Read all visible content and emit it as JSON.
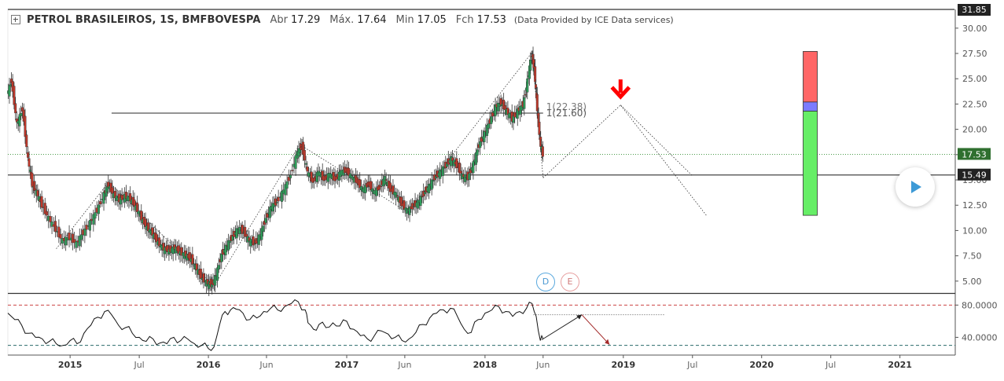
{
  "header": {
    "symbol": "PETROL BRASILEIROS, 1S, BMFBOVESPA",
    "open_label": "Abr",
    "open_value": "17.29",
    "high_label": "Máx.",
    "high_value": "17.64",
    "low_label": "Min",
    "low_value": "17.05",
    "close_label": "Fch",
    "close_value": "17.53",
    "source": "(Data Provided by ICE Data services)"
  },
  "events": {
    "dividends": "D",
    "earnings": "E"
  },
  "colors": {
    "up": "#2e9e5a",
    "down": "#c0392b",
    "target_red": "#ff6666",
    "target_blue": "#7b7bff",
    "target_green": "#66ee66",
    "arrow": "#ff0000",
    "play": "#3d9ad6"
  },
  "chart_data": {
    "type": "candlestick",
    "price_axis": {
      "ticks": [
        "30.00",
        "27.50",
        "25.00",
        "22.50",
        "20.00",
        "17.50",
        "15.00",
        "12.50",
        "10.00",
        "7.50",
        "5.00"
      ],
      "tick_values": [
        30,
        27.5,
        25,
        22.5,
        20,
        17.5,
        15,
        12.5,
        10,
        7.5,
        5
      ],
      "ylim": [
        3.9,
        31.85
      ],
      "top_label": "31.85",
      "last_price": "17.53",
      "support_label": "15.49"
    },
    "oscillator_axis": {
      "ticks": [
        "80.0000",
        "40.0000"
      ],
      "tick_values": [
        80,
        40
      ],
      "ylim": [
        18,
        93
      ],
      "overbought": 80,
      "oversold": 30
    },
    "time_axis": {
      "labels": [
        "2015",
        "Jul",
        "2016",
        "Jun",
        "2017",
        "Jun",
        "2018",
        "Jun",
        "2019",
        "Jul",
        "2020",
        "Jul",
        "2021"
      ],
      "bold": [
        true,
        false,
        true,
        false,
        true,
        false,
        true,
        false,
        true,
        false,
        true,
        false,
        true
      ],
      "xlim": [
        2014.55,
        2021.4
      ],
      "label_positions": [
        2015.0,
        2015.5,
        2016.0,
        2016.42,
        2017.0,
        2017.42,
        2018.0,
        2018.42,
        2019.0,
        2019.5,
        2020.0,
        2020.5,
        2021.0
      ]
    },
    "price_series": [
      [
        2014.55,
        23.5
      ],
      [
        2014.58,
        24.8
      ],
      [
        2014.62,
        20.5
      ],
      [
        2014.66,
        22.0
      ],
      [
        2014.7,
        17.0
      ],
      [
        2014.73,
        14.5
      ],
      [
        2014.76,
        13.8
      ],
      [
        2014.8,
        12.5
      ],
      [
        2014.85,
        11.2
      ],
      [
        2014.9,
        10.1
      ],
      [
        2014.95,
        9.0
      ],
      [
        2015.0,
        9.3
      ],
      [
        2015.05,
        8.7
      ],
      [
        2015.1,
        9.8
      ],
      [
        2015.15,
        10.8
      ],
      [
        2015.2,
        12.0
      ],
      [
        2015.25,
        13.6
      ],
      [
        2015.28,
        14.5
      ],
      [
        2015.32,
        13.5
      ],
      [
        2015.36,
        13.0
      ],
      [
        2015.4,
        13.4
      ],
      [
        2015.44,
        13.1
      ],
      [
        2015.48,
        12.3
      ],
      [
        2015.52,
        11.2
      ],
      [
        2015.56,
        10.3
      ],
      [
        2015.6,
        9.7
      ],
      [
        2015.64,
        8.8
      ],
      [
        2015.68,
        8.2
      ],
      [
        2015.72,
        8.0
      ],
      [
        2015.76,
        8.3
      ],
      [
        2015.8,
        7.8
      ],
      [
        2015.84,
        7.6
      ],
      [
        2015.88,
        7.1
      ],
      [
        2015.92,
        6.2
      ],
      [
        2015.96,
        5.2
      ],
      [
        2016.0,
        4.8
      ],
      [
        2016.03,
        4.6
      ],
      [
        2016.06,
        5.6
      ],
      [
        2016.1,
        7.6
      ],
      [
        2016.14,
        8.6
      ],
      [
        2016.18,
        9.4
      ],
      [
        2016.22,
        10.2
      ],
      [
        2016.26,
        9.8
      ],
      [
        2016.3,
        9.0
      ],
      [
        2016.34,
        8.7
      ],
      [
        2016.38,
        9.6
      ],
      [
        2016.42,
        11.2
      ],
      [
        2016.46,
        12.4
      ],
      [
        2016.5,
        12.8
      ],
      [
        2016.55,
        14.0
      ],
      [
        2016.6,
        15.5
      ],
      [
        2016.65,
        17.8
      ],
      [
        2016.68,
        18.3
      ],
      [
        2016.72,
        15.8
      ],
      [
        2016.76,
        14.8
      ],
      [
        2016.8,
        15.8
      ],
      [
        2016.84,
        15.0
      ],
      [
        2016.88,
        15.6
      ],
      [
        2016.92,
        15.0
      ],
      [
        2016.96,
        15.8
      ],
      [
        2017.0,
        15.9
      ],
      [
        2017.04,
        15.3
      ],
      [
        2017.08,
        14.8
      ],
      [
        2017.12,
        14.0
      ],
      [
        2017.16,
        14.6
      ],
      [
        2017.2,
        13.8
      ],
      [
        2017.24,
        14.2
      ],
      [
        2017.28,
        15.2
      ],
      [
        2017.32,
        14.0
      ],
      [
        2017.36,
        13.6
      ],
      [
        2017.4,
        12.6
      ],
      [
        2017.44,
        12.0
      ],
      [
        2017.48,
        12.3
      ],
      [
        2017.52,
        12.8
      ],
      [
        2017.56,
        13.6
      ],
      [
        2017.6,
        14.4
      ],
      [
        2017.64,
        15.2
      ],
      [
        2017.68,
        15.8
      ],
      [
        2017.72,
        16.4
      ],
      [
        2017.76,
        17.1
      ],
      [
        2017.8,
        16.4
      ],
      [
        2017.84,
        15.4
      ],
      [
        2017.88,
        15.2
      ],
      [
        2017.92,
        16.6
      ],
      [
        2017.96,
        18.4
      ],
      [
        2018.0,
        19.6
      ],
      [
        2018.04,
        20.8
      ],
      [
        2018.08,
        22.2
      ],
      [
        2018.12,
        22.6
      ],
      [
        2018.16,
        21.8
      ],
      [
        2018.2,
        21.0
      ],
      [
        2018.24,
        21.8
      ],
      [
        2018.28,
        22.4
      ],
      [
        2018.31,
        24.8
      ],
      [
        2018.34,
        27.4
      ],
      [
        2018.36,
        25.8
      ],
      [
        2018.38,
        22.0
      ],
      [
        2018.4,
        18.8
      ],
      [
        2018.42,
        17.5
      ]
    ],
    "oscillator_series": [
      [
        2014.55,
        70
      ],
      [
        2014.6,
        62
      ],
      [
        2014.65,
        55
      ],
      [
        2014.7,
        45
      ],
      [
        2014.75,
        40
      ],
      [
        2014.8,
        38
      ],
      [
        2014.85,
        35
      ],
      [
        2014.9,
        32
      ],
      [
        2014.95,
        30
      ],
      [
        2015.0,
        36
      ],
      [
        2015.05,
        32
      ],
      [
        2015.1,
        45
      ],
      [
        2015.15,
        55
      ],
      [
        2015.2,
        65
      ],
      [
        2015.25,
        72
      ],
      [
        2015.3,
        68
      ],
      [
        2015.35,
        55
      ],
      [
        2015.4,
        52
      ],
      [
        2015.45,
        45
      ],
      [
        2015.5,
        40
      ],
      [
        2015.55,
        35
      ],
      [
        2015.6,
        38
      ],
      [
        2015.65,
        33
      ],
      [
        2015.7,
        32
      ],
      [
        2015.75,
        40
      ],
      [
        2015.8,
        36
      ],
      [
        2015.85,
        38
      ],
      [
        2015.9,
        32
      ],
      [
        2015.95,
        30
      ],
      [
        2016.0,
        26
      ],
      [
        2016.04,
        28
      ],
      [
        2016.08,
        55
      ],
      [
        2016.12,
        72
      ],
      [
        2016.16,
        74
      ],
      [
        2016.2,
        75
      ],
      [
        2016.25,
        70
      ],
      [
        2016.3,
        62
      ],
      [
        2016.35,
        64
      ],
      [
        2016.4,
        72
      ],
      [
        2016.45,
        76
      ],
      [
        2016.5,
        74
      ],
      [
        2016.55,
        78
      ],
      [
        2016.6,
        82
      ],
      [
        2016.65,
        84
      ],
      [
        2016.7,
        74
      ],
      [
        2016.72,
        58
      ],
      [
        2016.76,
        50
      ],
      [
        2016.8,
        56
      ],
      [
        2016.85,
        52
      ],
      [
        2016.9,
        58
      ],
      [
        2016.95,
        54
      ],
      [
        2017.0,
        60
      ],
      [
        2017.05,
        50
      ],
      [
        2017.1,
        42
      ],
      [
        2017.15,
        38
      ],
      [
        2017.2,
        42
      ],
      [
        2017.25,
        48
      ],
      [
        2017.3,
        44
      ],
      [
        2017.35,
        40
      ],
      [
        2017.4,
        36
      ],
      [
        2017.45,
        38
      ],
      [
        2017.5,
        46
      ],
      [
        2017.55,
        56
      ],
      [
        2017.6,
        64
      ],
      [
        2017.65,
        70
      ],
      [
        2017.7,
        74
      ],
      [
        2017.75,
        76
      ],
      [
        2017.8,
        66
      ],
      [
        2017.85,
        50
      ],
      [
        2017.9,
        46
      ],
      [
        2017.95,
        62
      ],
      [
        2018.0,
        70
      ],
      [
        2018.05,
        74
      ],
      [
        2018.1,
        78
      ],
      [
        2018.15,
        72
      ],
      [
        2018.2,
        66
      ],
      [
        2018.25,
        72
      ],
      [
        2018.3,
        76
      ],
      [
        2018.34,
        82
      ],
      [
        2018.37,
        66
      ],
      [
        2018.4,
        36
      ],
      [
        2018.42,
        38
      ]
    ],
    "annotations": {
      "fib_labels": [
        "1(22.38)",
        "1(21.60)"
      ],
      "resistance_level": 21.6,
      "support_level": 15.49,
      "projection": [
        [
          2018.42,
          15.2
        ],
        [
          2018.98,
          22.4
        ],
        [
          2019.6,
          11.5
        ]
      ],
      "projection_alt": [
        [
          2018.98,
          22.4
        ],
        [
          2019.5,
          15.4
        ]
      ],
      "sell_arrow": [
        2018.98,
        24.0
      ],
      "target_box": {
        "x": 2020.3,
        "stop": [
          22.7,
          27.7
        ],
        "entry": [
          21.8,
          22.7
        ],
        "target": [
          11.5,
          21.8
        ]
      }
    }
  }
}
